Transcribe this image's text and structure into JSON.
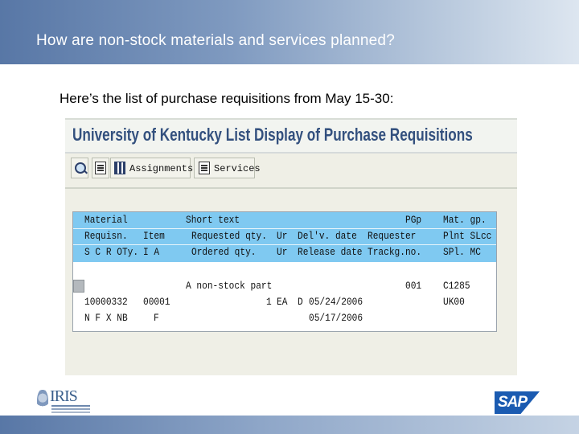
{
  "slide": {
    "title": "How are non-stock materials and services planned?",
    "subtitle": "Here’s the list of purchase requisitions from May 15-30:"
  },
  "screen": {
    "title": "University of Kentucky List Display of Purchase Requisitions",
    "toolbar": {
      "assignments_label": "Assignments",
      "services_label": "Services"
    }
  },
  "list": {
    "header_rows": [
      {
        "c1": "Material",
        "c2": "Short text",
        "c3": "",
        "c4": "",
        "c5": "PGp",
        "c6": "Mat. gp."
      },
      {
        "c1": "Requisn.",
        "c1b": "Item",
        "c2": "Requested qty.",
        "c3": "Ur",
        "c4": "Del'v. date",
        "c4b": "Requester",
        "c6": "Plnt SLcc"
      },
      {
        "c1": "S C R OTy.",
        "c1b": "I A",
        "c2": "Ordered qty.",
        "c3": "Ur",
        "c4": "Release date",
        "c4b": "Trackg.no.",
        "c6": "SPl. MC"
      }
    ],
    "data_rows": [
      {
        "c2": "A non-stock part",
        "c5": "001",
        "c6": "C1285"
      },
      {
        "c1": "10000332",
        "c1b": "00001",
        "c2q": "1",
        "c3": "EA",
        "c3b": "D",
        "c4": "05/24/2006",
        "c6": "UK00"
      },
      {
        "c1": "N F X NB",
        "c1b": "F",
        "c4": "05/17/2006"
      }
    ]
  },
  "footer": {
    "left_logo": "IRIS",
    "right_logo": "SAP"
  },
  "colors": {
    "header_band": "#5877a6",
    "list_header": "#7fc9f1",
    "screen_title": "#33507e",
    "sap_blue": "#1b5bb1"
  },
  "icons": [
    "search-icon",
    "document-icon",
    "grid-icon",
    "document-icon"
  ]
}
